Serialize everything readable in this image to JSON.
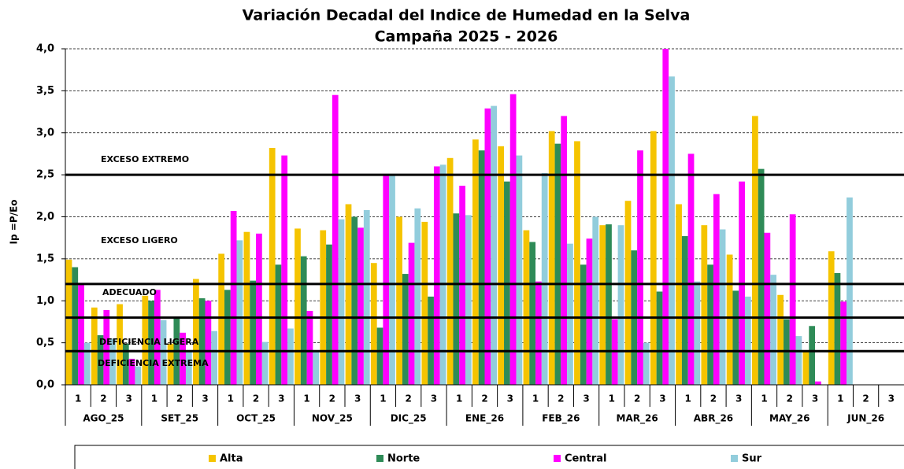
{
  "chart_data": {
    "type": "bar",
    "title": "Variación Decadal del Indice de Humedad en la Selva",
    "subtitle": "Campaña 2025 - 2026",
    "y_label": "Ip =P/Eo",
    "categories": [
      "1",
      "2",
      "3",
      "1",
      "2",
      "3",
      "1",
      "2",
      "3",
      "1",
      "2",
      "3",
      "1",
      "2",
      "3",
      "1",
      "2",
      "3",
      "1",
      "2",
      "3",
      "1",
      "2",
      "3",
      "1",
      "2",
      "3",
      "1",
      "2",
      "3",
      "1",
      "2",
      "3"
    ],
    "months": [
      "AGO_25",
      "SET_25",
      "OCT_25",
      "NOV_25",
      "DIC_25",
      "ENE_26",
      "FEB_26",
      "MAR_26",
      "ABR_26",
      "MAY_26",
      "JUN_26"
    ],
    "series": [
      {
        "name": "Alta",
        "color": "#f5c400",
        "values": [
          1.49,
          0.92,
          0.96,
          1.06,
          0.49,
          1.26,
          1.56,
          1.82,
          2.82,
          1.86,
          1.84,
          2.15,
          1.45,
          2.0,
          1.94,
          2.7,
          2.92,
          2.84,
          1.84,
          3.02,
          2.9,
          1.9,
          2.19,
          3.02,
          2.15,
          1.9,
          1.55,
          3.2,
          1.07,
          0.4,
          1.59,
          null,
          null
        ]
      },
      {
        "name": "Norte",
        "color": "#2e8b57",
        "values": [
          1.4,
          0.59,
          0.49,
          1.0,
          0.81,
          1.03,
          1.13,
          1.24,
          1.43,
          1.53,
          1.67,
          2.0,
          0.68,
          1.32,
          1.05,
          2.04,
          2.79,
          2.42,
          1.7,
          2.87,
          1.43,
          1.91,
          1.6,
          1.11,
          1.77,
          1.43,
          1.12,
          2.57,
          0.78,
          0.7,
          1.33,
          null,
          null
        ]
      },
      {
        "name": "Central",
        "color": "#ff00ff",
        "values": [
          1.2,
          0.89,
          0.31,
          1.13,
          0.62,
          1.0,
          2.07,
          1.8,
          2.73,
          0.88,
          3.45,
          1.87,
          2.49,
          1.69,
          2.6,
          2.37,
          3.29,
          3.46,
          1.23,
          3.2,
          1.74,
          0.78,
          2.79,
          4.0,
          2.75,
          2.27,
          2.42,
          1.81,
          2.03,
          0.04,
          0.99,
          null,
          null
        ]
      },
      {
        "name": "Sur",
        "color": "#92cddc",
        "values": [
          0.5,
          0.55,
          0.22,
          0.77,
          0.4,
          0.64,
          1.72,
          0.51,
          0.67,
          0.4,
          1.97,
          2.08,
          2.49,
          2.1,
          2.62,
          2.02,
          3.32,
          2.73,
          2.52,
          1.68,
          2.0,
          1.9,
          0.5,
          3.67,
          1.23,
          1.85,
          1.05,
          1.31,
          0.58,
          null,
          2.23,
          null,
          null
        ]
      }
    ],
    "thresholds": [
      2.5,
      1.2,
      0.8,
      0.4
    ],
    "zones": [
      "EXCESO EXTREMO",
      "EXCESO LIGERO",
      "ADECUADO",
      "DEFICIENCIA LIGERA",
      "DEFICIENCIA EXTREMA"
    ],
    "ylim": [
      0,
      4
    ],
    "yticks": [
      {
        "value": 0,
        "label": "0,0"
      },
      {
        "value": 0.5,
        "label": "0,5"
      },
      {
        "value": 1,
        "label": "1,0"
      },
      {
        "value": 1.5,
        "label": "1,5"
      },
      {
        "value": 2,
        "label": "2,0"
      },
      {
        "value": 2.5,
        "label": "2,5"
      },
      {
        "value": 3,
        "label": "3,0"
      },
      {
        "value": 3.5,
        "label": "3,5"
      },
      {
        "value": 4,
        "label": "4,0"
      }
    ],
    "grid": true
  }
}
